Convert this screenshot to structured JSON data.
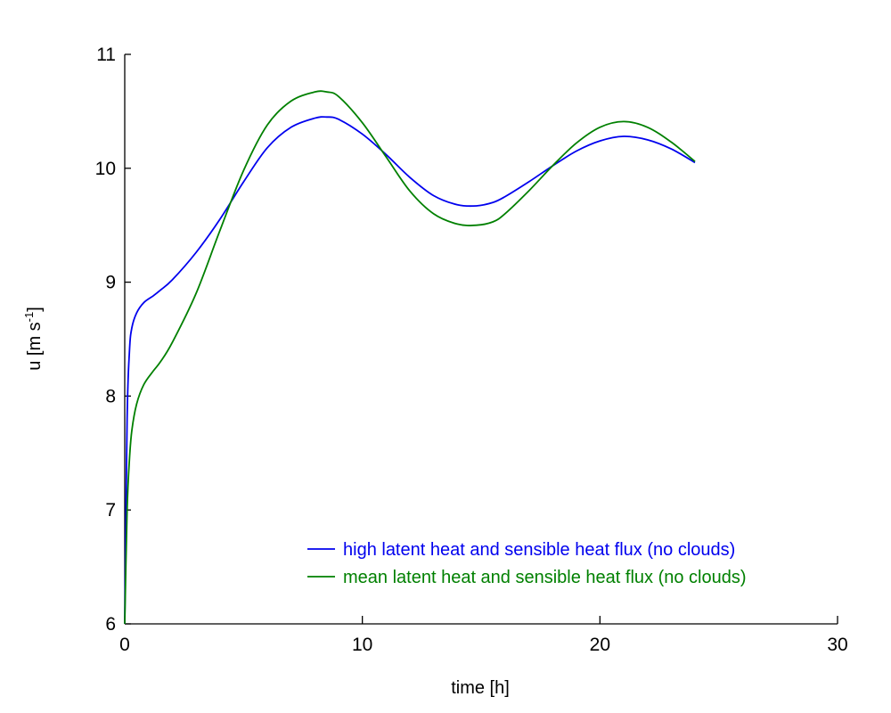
{
  "chart_data": {
    "type": "line",
    "xlabel": "time [h]",
    "ylabel": {
      "main": "u [m s",
      "sup": "-1",
      "end": "]"
    },
    "xlim": [
      0,
      30
    ],
    "ylim": [
      6,
      11
    ],
    "xticks": [
      0,
      10,
      20,
      30
    ],
    "yticks": [
      6,
      7,
      8,
      9,
      10,
      11
    ],
    "grid": false,
    "legend_position": "bottom-right",
    "series": [
      {
        "name": "high latent heat and sensible heat flux (no clouds)",
        "color": "#0000ee",
        "x": [
          0,
          0.1,
          0.2,
          0.3,
          0.5,
          0.8,
          1.2,
          1.5,
          2,
          3,
          4,
          5,
          6,
          7,
          8,
          8.5,
          9,
          10,
          11,
          12,
          13,
          14,
          14.8,
          15.5,
          16,
          17,
          18,
          19,
          20,
          21,
          22,
          23,
          24
        ],
        "y": [
          6.0,
          7.8,
          8.4,
          8.6,
          8.73,
          8.82,
          8.88,
          8.93,
          9.02,
          9.26,
          9.55,
          9.88,
          10.18,
          10.36,
          10.44,
          10.45,
          10.43,
          10.3,
          10.12,
          9.92,
          9.76,
          9.68,
          9.67,
          9.7,
          9.75,
          9.88,
          10.02,
          10.15,
          10.24,
          10.28,
          10.25,
          10.17,
          10.05
        ]
      },
      {
        "name": "mean latent heat and sensible heat flux (no clouds)",
        "color": "#008000",
        "x": [
          0,
          0.1,
          0.2,
          0.3,
          0.5,
          0.8,
          1.2,
          1.5,
          2,
          3,
          4,
          5,
          6,
          7,
          8,
          8.5,
          9,
          10,
          11,
          12,
          13,
          14,
          14.8,
          15.5,
          16,
          17,
          18,
          19,
          20,
          21,
          22,
          23,
          24
        ],
        "y": [
          6.0,
          7.0,
          7.45,
          7.7,
          7.93,
          8.1,
          8.22,
          8.3,
          8.47,
          8.9,
          9.45,
          9.98,
          10.38,
          10.59,
          10.67,
          10.67,
          10.63,
          10.4,
          10.1,
          9.8,
          9.6,
          9.51,
          9.5,
          9.53,
          9.6,
          9.8,
          10.02,
          10.22,
          10.36,
          10.41,
          10.36,
          10.23,
          10.06
        ]
      }
    ]
  }
}
